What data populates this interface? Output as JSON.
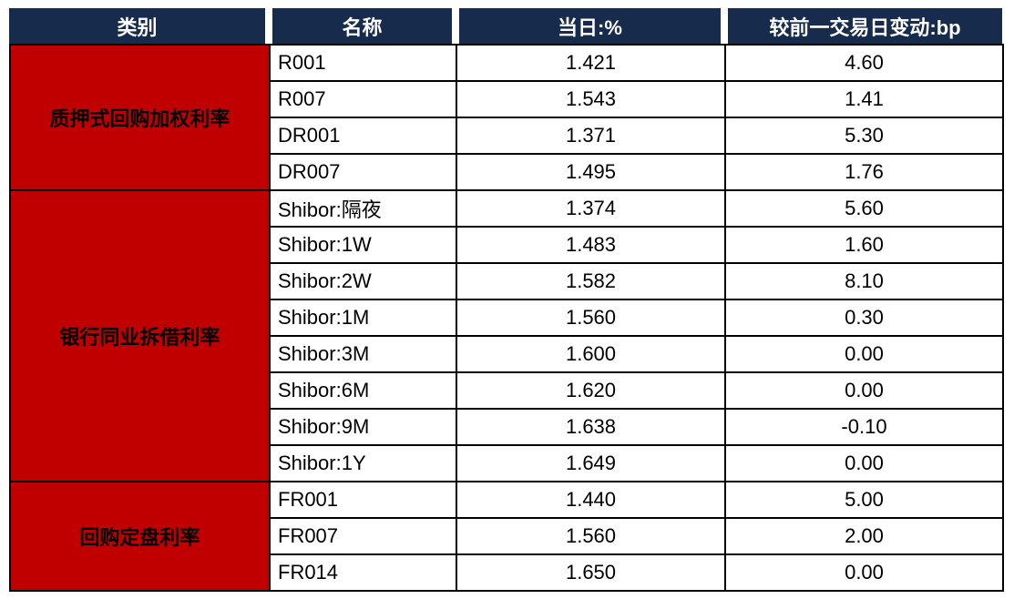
{
  "table": {
    "headers": [
      "类别",
      "名称",
      "当日:%",
      "较前一交易日变动:bp"
    ],
    "groups": [
      {
        "category": "质押式回购加权利率",
        "rows": [
          {
            "name": "R001",
            "value": "1.421",
            "change": "4.60"
          },
          {
            "name": "R007",
            "value": "1.543",
            "change": "1.41"
          },
          {
            "name": "DR001",
            "value": "1.371",
            "change": "5.30"
          },
          {
            "name": "DR007",
            "value": "1.495",
            "change": "1.76"
          }
        ]
      },
      {
        "category": "银行同业拆借利率",
        "rows": [
          {
            "name": "Shibor:隔夜",
            "value": "1.374",
            "change": "5.60"
          },
          {
            "name": "Shibor:1W",
            "value": "1.483",
            "change": "1.60"
          },
          {
            "name": "Shibor:2W",
            "value": "1.582",
            "change": "8.10"
          },
          {
            "name": "Shibor:1M",
            "value": "1.560",
            "change": "0.30"
          },
          {
            "name": "Shibor:3M",
            "value": "1.600",
            "change": "0.00"
          },
          {
            "name": "Shibor:6M",
            "value": "1.620",
            "change": "0.00"
          },
          {
            "name": "Shibor:9M",
            "value": "1.638",
            "change": "-0.10"
          },
          {
            "name": "Shibor:1Y",
            "value": "1.649",
            "change": "0.00"
          }
        ]
      },
      {
        "category": "回购定盘利率",
        "rows": [
          {
            "name": "FR001",
            "value": "1.440",
            "change": "5.00"
          },
          {
            "name": "FR007",
            "value": "1.560",
            "change": "2.00"
          },
          {
            "name": "FR014",
            "value": "1.650",
            "change": "0.00"
          }
        ]
      }
    ]
  },
  "colors": {
    "header_bg": "#172B4D",
    "header_text": "#FFFFFF",
    "category_bg": "#C00000",
    "category_text": "#FFFFFF",
    "body_text": "#000000",
    "grid_line": "#000000"
  },
  "chart_data": {
    "type": "table",
    "columns": [
      "类别",
      "名称",
      "当日:%",
      "较前一交易日变动:bp"
    ],
    "rows": [
      [
        "质押式回购加权利率",
        "R001",
        1.421,
        4.6
      ],
      [
        "质押式回购加权利率",
        "R007",
        1.543,
        1.41
      ],
      [
        "质押式回购加权利率",
        "DR001",
        1.371,
        5.3
      ],
      [
        "质押式回购加权利率",
        "DR007",
        1.495,
        1.76
      ],
      [
        "银行同业拆借利率",
        "Shibor:隔夜",
        1.374,
        5.6
      ],
      [
        "银行同业拆借利率",
        "Shibor:1W",
        1.483,
        1.6
      ],
      [
        "银行同业拆借利率",
        "Shibor:2W",
        1.582,
        8.1
      ],
      [
        "银行同业拆借利率",
        "Shibor:1M",
        1.56,
        0.3
      ],
      [
        "银行同业拆借利率",
        "Shibor:3M",
        1.6,
        0.0
      ],
      [
        "银行同业拆借利率",
        "Shibor:6M",
        1.62,
        0.0
      ],
      [
        "银行同业拆借利率",
        "Shibor:9M",
        1.638,
        -0.1
      ],
      [
        "银行同业拆借利率",
        "Shibor:1Y",
        1.649,
        0.0
      ],
      [
        "回购定盘利率",
        "FR001",
        1.44,
        5.0
      ],
      [
        "回购定盘利率",
        "FR007",
        1.56,
        2.0
      ],
      [
        "回购定盘利率",
        "FR014",
        1.65,
        0.0
      ]
    ]
  }
}
